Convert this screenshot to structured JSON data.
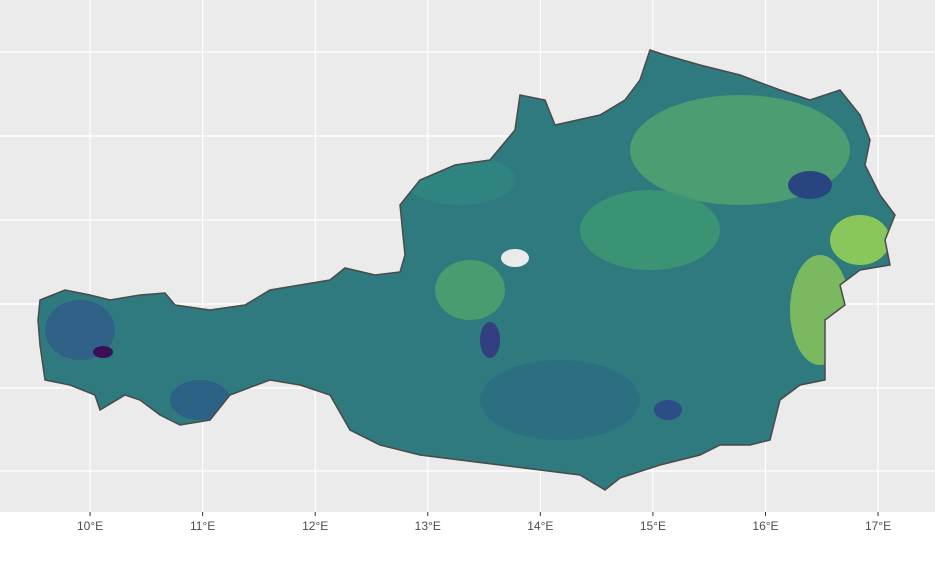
{
  "chart_data": {
    "type": "map",
    "xlim": [
      9.2,
      17.506
    ],
    "xticks": [
      {
        "value": 10,
        "label": "10°E"
      },
      {
        "value": 11,
        "label": "11°E"
      },
      {
        "value": 12,
        "label": "12°E"
      },
      {
        "value": 13,
        "label": "13°E"
      },
      {
        "value": 14,
        "label": "14°E"
      },
      {
        "value": 15,
        "label": "15°E"
      },
      {
        "value": 16,
        "label": "16°E"
      },
      {
        "value": 17,
        "label": "17°E"
      }
    ],
    "grid": true
  }
}
